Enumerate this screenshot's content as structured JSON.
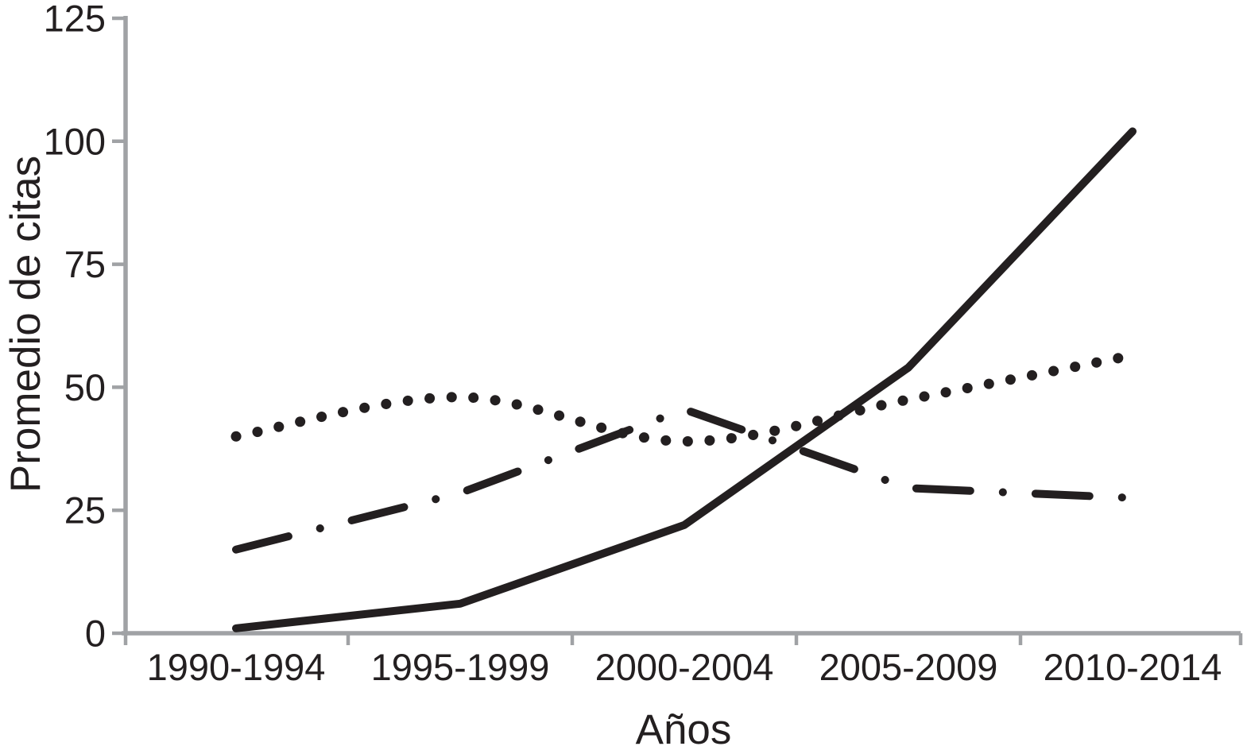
{
  "chart_data": {
    "type": "line",
    "title": "",
    "xlabel": "Años",
    "ylabel": "Promedio de citas",
    "categories": [
      "1990-1994",
      "1995-1999",
      "2000-2004",
      "2005-2009",
      "2010-2014"
    ],
    "series": [
      {
        "name": "solid",
        "style": "solid",
        "values": [
          1,
          6,
          22,
          54,
          102
        ]
      },
      {
        "name": "dotted",
        "style": "dotted",
        "values": [
          40,
          48,
          39,
          47.5,
          56.5
        ]
      },
      {
        "name": "dash-dot",
        "style": "dashdot",
        "values": [
          17,
          28.5,
          45.5,
          29.5,
          27.5
        ]
      }
    ],
    "ylim": [
      0,
      125
    ],
    "yticks": [
      0,
      25,
      50,
      75,
      100,
      125
    ],
    "grid": false,
    "legend": "none",
    "colors": {
      "line": "#231f20",
      "axis": "#a0a2a5",
      "text": "#231f20",
      "background": "#ffffff"
    }
  }
}
